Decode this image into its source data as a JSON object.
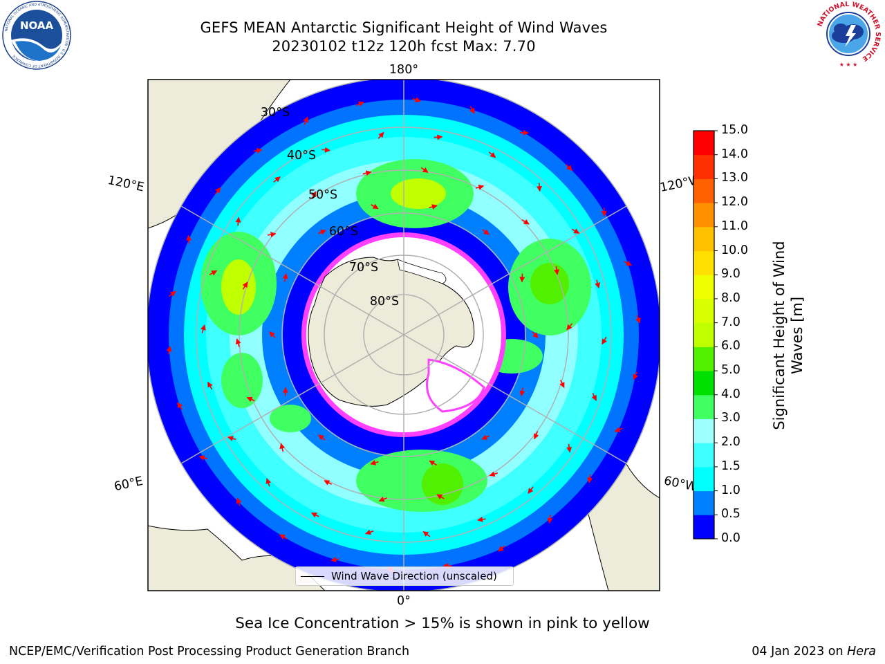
{
  "title": {
    "line1": "GEFS MEAN Antarctic Significant Height of Wind Waves",
    "line2": "20230102 t12z 120h fcst   Max: 7.70"
  },
  "logos": {
    "left": "NOAA",
    "left_ring_text": "NATIONAL OCEANIC AND ATMOSPHERIC ADMINISTRATION · U.S. DEPARTMENT OF COMMERCE",
    "right_ring_text": "NATIONAL WEATHER SERVICE"
  },
  "map": {
    "projection": "south-polar-stereographic",
    "longitude_labels": {
      "top": "180°",
      "bottom": "0°",
      "upper_left": "120°E",
      "upper_right": "120°W",
      "lower_left": "60°E",
      "lower_right": "60°W"
    },
    "latitude_labels": [
      "30°S",
      "40°S",
      "50°S",
      "60°S",
      "70°S",
      "80°S"
    ],
    "legend_entry": "Wind Wave Direction (unscaled)",
    "colors": {
      "land": "#EDECDA",
      "wave_0": "#0000FF",
      "wave_05": "#0080FF",
      "wave_1": "#00FFFF",
      "wave_15": "#40FFFF",
      "wave_2": "#A0FFFF",
      "wave_3": "#40FF60",
      "wave_4": "#00E000",
      "wave_5": "#50F000",
      "wave_6": "#C0FF00",
      "sea_ice": "#FF40FF",
      "arrow": "#FF0000",
      "grid": "#B0B0B0"
    }
  },
  "colorbar": {
    "title": "Significant Height of Wind Waves [m]",
    "title_line1": "Significant Height of Wind",
    "title_line2": "Waves [m]",
    "ticks": [
      "15.0",
      "14.0",
      "13.0",
      "12.0",
      "11.0",
      "10.0",
      "9.0",
      "8.0",
      "7.0",
      "6.0",
      "5.0",
      "4.0",
      "3.0",
      "2.0",
      "1.5",
      "1.0",
      "0.5",
      "0.0"
    ],
    "bins": [
      {
        "from": 0.0,
        "to": 0.5,
        "color": "#0000FF"
      },
      {
        "from": 0.5,
        "to": 1.0,
        "color": "#0080FF"
      },
      {
        "from": 1.0,
        "to": 1.5,
        "color": "#00FFFF"
      },
      {
        "from": 1.5,
        "to": 2.0,
        "color": "#40FFFF"
      },
      {
        "from": 2.0,
        "to": 3.0,
        "color": "#A0FFFF"
      },
      {
        "from": 3.0,
        "to": 4.0,
        "color": "#40FF60"
      },
      {
        "from": 4.0,
        "to": 5.0,
        "color": "#00E000"
      },
      {
        "from": 5.0,
        "to": 6.0,
        "color": "#50F000"
      },
      {
        "from": 6.0,
        "to": 7.0,
        "color": "#C0FF00"
      },
      {
        "from": 7.0,
        "to": 8.0,
        "color": "#D8FF00"
      },
      {
        "from": 8.0,
        "to": 9.0,
        "color": "#F0FF00"
      },
      {
        "from": 9.0,
        "to": 10.0,
        "color": "#FFE000"
      },
      {
        "from": 10.0,
        "to": 11.0,
        "color": "#FFC000"
      },
      {
        "from": 11.0,
        "to": 12.0,
        "color": "#FF9000"
      },
      {
        "from": 12.0,
        "to": 13.0,
        "color": "#FF6000"
      },
      {
        "from": 13.0,
        "to": 14.0,
        "color": "#FF3000"
      },
      {
        "from": 14.0,
        "to": 15.0,
        "color": "#FF0000"
      }
    ]
  },
  "notes": {
    "sea_ice": "Sea Ice Concentration > 15% is shown in pink to yellow"
  },
  "footer": {
    "left": "NCEP/EMC/Verification Post Processing Product Generation Branch",
    "right_date": "04 Jan 2023 on ",
    "right_machine": "Hera"
  }
}
